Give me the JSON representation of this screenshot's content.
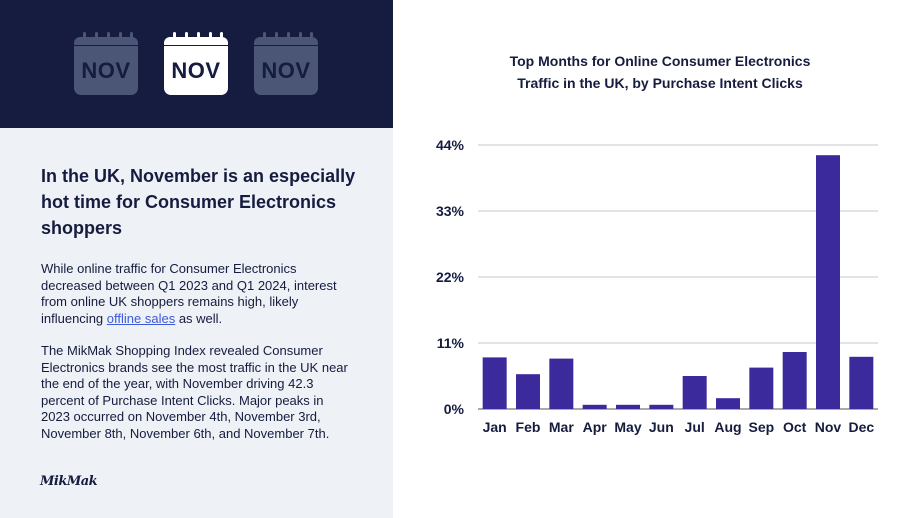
{
  "banner": {
    "calendars": [
      {
        "label": "NOV",
        "state": "dim"
      },
      {
        "label": "NOV",
        "state": "highlighted"
      },
      {
        "label": "NOV",
        "state": "dim"
      }
    ]
  },
  "left": {
    "headline": "In the UK, November is an especially hot time for Consumer Electronics shoppers",
    "para1_before": "While online traffic for Consumer Electronics decreased between Q1 2023 and Q1 2024, interest from online UK shoppers remains high, likely influencing ",
    "para1_link": "offline sales",
    "para1_after": " as well.",
    "para2": "The MikMak Shopping Index revealed Consumer Electronics brands see the most traffic in the UK near the end of the year, with November driving 42.3 percent of Purchase Intent Clicks. Major peaks in 2023 occurred on November 4th, November 3rd, November 8th, November 6th, and November 7th.",
    "logo": "MikMak"
  },
  "colors": {
    "banner_bg": "#151c3f",
    "panel_bg": "#eef1f5",
    "bar": "#3a2a9c",
    "text": "#151c3f",
    "link": "#3b5bdb"
  },
  "chart_data": {
    "type": "bar",
    "title_line1": "Top Months for Online Consumer Electronics",
    "title_line2": "Traffic in the UK, by Purchase Intent Clicks",
    "categories": [
      "Jan",
      "Feb",
      "Mar",
      "Apr",
      "May",
      "Jun",
      "Jul",
      "Aug",
      "Sep",
      "Oct",
      "Nov",
      "Dec"
    ],
    "values": [
      8.6,
      5.8,
      8.4,
      0.7,
      0.7,
      0.7,
      5.5,
      1.8,
      6.9,
      9.5,
      42.3,
      8.7
    ],
    "ylim": [
      0,
      44
    ],
    "yticks": [
      0,
      11,
      22,
      33,
      44
    ],
    "ytick_labels": [
      "0%",
      "11%",
      "22%",
      "33%",
      "44%"
    ],
    "grid": true,
    "xlabel": "",
    "ylabel": ""
  }
}
